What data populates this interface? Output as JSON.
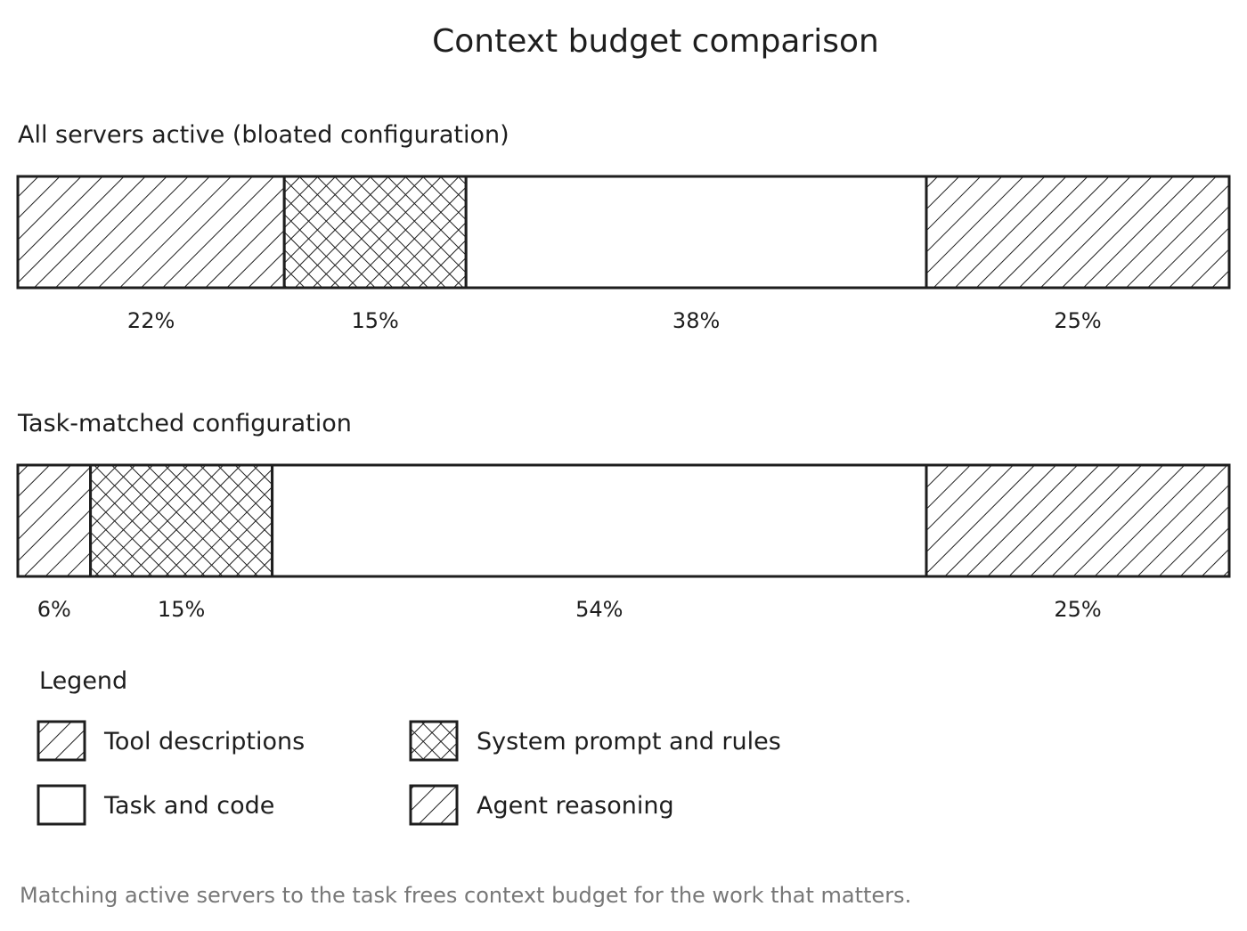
{
  "chart_data": {
    "type": "bar",
    "orientation": "horizontal-stacked",
    "title": "Context budget comparison",
    "unit": "%",
    "segments": [
      "Tool descriptions",
      "System prompt and rules",
      "Task and code",
      "Agent reasoning"
    ],
    "bars": [
      {
        "label": "All servers active (bloated configuration)",
        "values": [
          22,
          15,
          38,
          25
        ],
        "value_labels": [
          "22%",
          "15%",
          "38%",
          "25%"
        ]
      },
      {
        "label": "Task-matched configuration",
        "values": [
          6,
          15,
          54,
          25
        ],
        "value_labels": [
          "6%",
          "15%",
          "54%",
          "25%"
        ]
      }
    ],
    "legend": {
      "title": "Legend",
      "placement": "bottom-left",
      "items": [
        {
          "label": "Tool descriptions",
          "pattern": "diagonal-hatch"
        },
        {
          "label": "System prompt and rules",
          "pattern": "cross-hatch"
        },
        {
          "label": "Task and code",
          "pattern": "none"
        },
        {
          "label": "Agent reasoning",
          "pattern": "diagonal-hatch"
        }
      ]
    },
    "caption": "Matching active servers to the task frees context budget for the work that matters.",
    "colors": {
      "stroke": "#1e1e1e",
      "fill": "#ffffff",
      "caption": "#777777"
    }
  }
}
